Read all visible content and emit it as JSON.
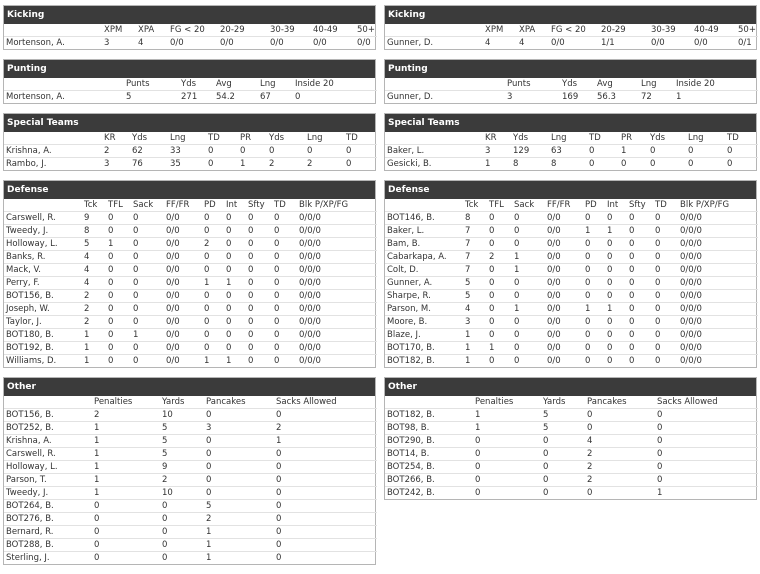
{
  "left": [
    {
      "title": "Kicking",
      "columns": [
        "XPM",
        "XPA",
        "FG < 20",
        "20-29",
        "30-39",
        "40-49",
        "50+"
      ],
      "rows": [
        [
          "Mortenson, A.",
          "3",
          "4",
          "0/0",
          "0/0",
          "0/0",
          "0/0",
          "0/0"
        ]
      ]
    },
    {
      "title": "Punting",
      "columns": [
        "Punts",
        "Yds",
        "Avg",
        "Lng",
        "Inside 20"
      ],
      "rows": [
        [
          "Mortenson, A.",
          "5",
          "271",
          "54.2",
          "67",
          "0"
        ]
      ]
    },
    {
      "title": "Special Teams",
      "columns": [
        "KR",
        "Yds",
        "Lng",
        "TD",
        "PR",
        "Yds",
        "Lng",
        "TD"
      ],
      "rows": [
        [
          "Krishna, A.",
          "2",
          "62",
          "33",
          "0",
          "0",
          "0",
          "0",
          "0"
        ],
        [
          "Rambo, J.",
          "3",
          "76",
          "35",
          "0",
          "1",
          "2",
          "2",
          "0"
        ]
      ]
    },
    {
      "title": "Defense",
      "columns": [
        "Tck",
        "TFL",
        "Sack",
        "FF/FR",
        "PD",
        "Int",
        "Sfty",
        "TD",
        "Blk P/XP/FG"
      ],
      "rows": [
        [
          "Carswell, R.",
          "9",
          "0",
          "0",
          "0/0",
          "0",
          "0",
          "0",
          "0",
          "0/0/0"
        ],
        [
          "Tweedy, J.",
          "8",
          "0",
          "0",
          "0/0",
          "0",
          "0",
          "0",
          "0",
          "0/0/0"
        ],
        [
          "Holloway, L.",
          "5",
          "1",
          "0",
          "0/0",
          "2",
          "0",
          "0",
          "0",
          "0/0/0"
        ],
        [
          "Banks, R.",
          "4",
          "0",
          "0",
          "0/0",
          "0",
          "0",
          "0",
          "0",
          "0/0/0"
        ],
        [
          "Mack, V.",
          "4",
          "0",
          "0",
          "0/0",
          "0",
          "0",
          "0",
          "0",
          "0/0/0"
        ],
        [
          "Perry, F.",
          "4",
          "0",
          "0",
          "0/0",
          "1",
          "1",
          "0",
          "0",
          "0/0/0"
        ],
        [
          "BOT156, B.",
          "2",
          "0",
          "0",
          "0/0",
          "0",
          "0",
          "0",
          "0",
          "0/0/0"
        ],
        [
          "Joseph, W.",
          "2",
          "0",
          "0",
          "0/0",
          "0",
          "0",
          "0",
          "0",
          "0/0/0"
        ],
        [
          "Taylor, J.",
          "2",
          "0",
          "0",
          "0/0",
          "0",
          "0",
          "0",
          "0",
          "0/0/0"
        ],
        [
          "BOT180, B.",
          "1",
          "0",
          "1",
          "0/0",
          "0",
          "0",
          "0",
          "0",
          "0/0/0"
        ],
        [
          "BOT192, B.",
          "1",
          "0",
          "0",
          "0/0",
          "0",
          "0",
          "0",
          "0",
          "0/0/0"
        ],
        [
          "Williams, D.",
          "1",
          "0",
          "0",
          "0/0",
          "1",
          "1",
          "0",
          "0",
          "0/0/0"
        ]
      ]
    },
    {
      "title": "Other",
      "columns": [
        "Penalties",
        "Yards",
        "Pancakes",
        "Sacks Allowed"
      ],
      "rows": [
        [
          "BOT156, B.",
          "2",
          "10",
          "0",
          "0"
        ],
        [
          "BOT252, B.",
          "1",
          "5",
          "3",
          "2"
        ],
        [
          "Krishna, A.",
          "1",
          "5",
          "0",
          "1"
        ],
        [
          "Carswell, R.",
          "1",
          "5",
          "0",
          "0"
        ],
        [
          "Holloway, L.",
          "1",
          "9",
          "0",
          "0"
        ],
        [
          "Parson, T.",
          "1",
          "2",
          "0",
          "0"
        ],
        [
          "Tweedy, J.",
          "1",
          "10",
          "0",
          "0"
        ],
        [
          "BOT264, B.",
          "0",
          "0",
          "5",
          "0"
        ],
        [
          "BOT276, B.",
          "0",
          "0",
          "2",
          "0"
        ],
        [
          "Bernard, R.",
          "0",
          "0",
          "1",
          "0"
        ],
        [
          "BOT288, B.",
          "0",
          "0",
          "1",
          "0"
        ],
        [
          "Sterling, J.",
          "0",
          "0",
          "1",
          "0"
        ]
      ]
    }
  ],
  "right": [
    {
      "title": "Kicking",
      "columns": [
        "XPM",
        "XPA",
        "FG < 20",
        "20-29",
        "30-39",
        "40-49",
        "50+"
      ],
      "rows": [
        [
          "Gunner, D.",
          "4",
          "4",
          "0/0",
          "1/1",
          "0/0",
          "0/0",
          "0/1"
        ]
      ]
    },
    {
      "title": "Punting",
      "columns": [
        "Punts",
        "Yds",
        "Avg",
        "Lng",
        "Inside 20"
      ],
      "rows": [
        [
          "Gunner, D.",
          "3",
          "169",
          "56.3",
          "72",
          "1"
        ]
      ]
    },
    {
      "title": "Special Teams",
      "columns": [
        "KR",
        "Yds",
        "Lng",
        "TD",
        "PR",
        "Yds",
        "Lng",
        "TD"
      ],
      "rows": [
        [
          "Baker, L.",
          "3",
          "129",
          "63",
          "0",
          "1",
          "0",
          "0",
          "0"
        ],
        [
          "Gesicki, B.",
          "1",
          "8",
          "8",
          "0",
          "0",
          "0",
          "0",
          "0"
        ]
      ]
    },
    {
      "title": "Defense",
      "columns": [
        "Tck",
        "TFL",
        "Sack",
        "FF/FR",
        "PD",
        "Int",
        "Sfty",
        "TD",
        "Blk P/XP/FG"
      ],
      "rows": [
        [
          "BOT146, B.",
          "8",
          "0",
          "0",
          "0/0",
          "0",
          "0",
          "0",
          "0",
          "0/0/0"
        ],
        [
          "Baker, L.",
          "7",
          "0",
          "0",
          "0/0",
          "1",
          "1",
          "0",
          "0",
          "0/0/0"
        ],
        [
          "Bam, B.",
          "7",
          "0",
          "0",
          "0/0",
          "0",
          "0",
          "0",
          "0",
          "0/0/0"
        ],
        [
          "Cabarkapa, A.",
          "7",
          "2",
          "1",
          "0/0",
          "0",
          "0",
          "0",
          "0",
          "0/0/0"
        ],
        [
          "Colt, D.",
          "7",
          "0",
          "1",
          "0/0",
          "0",
          "0",
          "0",
          "0",
          "0/0/0"
        ],
        [
          "Gunner, A.",
          "5",
          "0",
          "0",
          "0/0",
          "0",
          "0",
          "0",
          "0",
          "0/0/0"
        ],
        [
          "Sharpe, R.",
          "5",
          "0",
          "0",
          "0/0",
          "0",
          "0",
          "0",
          "0",
          "0/0/0"
        ],
        [
          "Parson, M.",
          "4",
          "0",
          "1",
          "0/0",
          "1",
          "1",
          "0",
          "0",
          "0/0/0"
        ],
        [
          "Moore, B.",
          "3",
          "0",
          "0",
          "0/0",
          "0",
          "0",
          "0",
          "0",
          "0/0/0"
        ],
        [
          "Blaze, J.",
          "1",
          "0",
          "0",
          "0/0",
          "0",
          "0",
          "0",
          "0",
          "0/0/0"
        ],
        [
          "BOT170, B.",
          "1",
          "1",
          "0",
          "0/0",
          "0",
          "0",
          "0",
          "0",
          "0/0/0"
        ],
        [
          "BOT182, B.",
          "1",
          "0",
          "0",
          "0/0",
          "0",
          "0",
          "0",
          "0",
          "0/0/0"
        ]
      ]
    },
    {
      "title": "Other",
      "columns": [
        "Penalties",
        "Yards",
        "Pancakes",
        "Sacks Allowed"
      ],
      "rows": [
        [
          "BOT182, B.",
          "1",
          "5",
          "0",
          "0"
        ],
        [
          "BOT98, B.",
          "1",
          "5",
          "0",
          "0"
        ],
        [
          "BOT290, B.",
          "0",
          "0",
          "4",
          "0"
        ],
        [
          "BOT14, B.",
          "0",
          "0",
          "2",
          "0"
        ],
        [
          "BOT254, B.",
          "0",
          "0",
          "2",
          "0"
        ],
        [
          "BOT266, B.",
          "0",
          "0",
          "2",
          "0"
        ],
        [
          "BOT242, B.",
          "0",
          "0",
          "0",
          "1"
        ]
      ]
    }
  ]
}
